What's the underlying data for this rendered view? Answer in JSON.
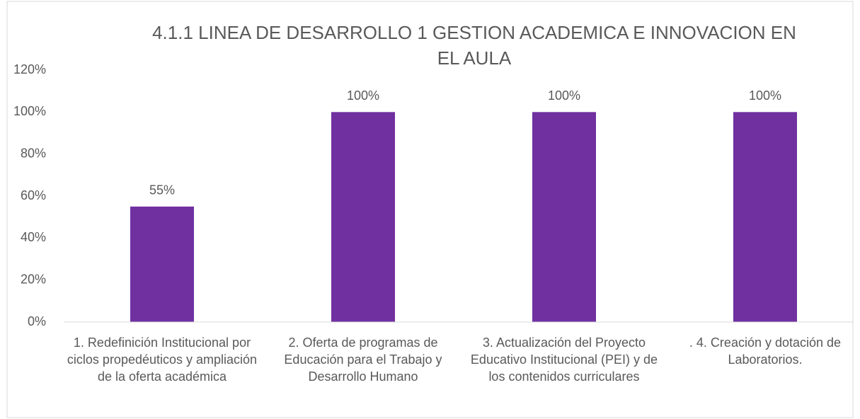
{
  "chart_data": {
    "type": "bar",
    "title": "4.1.1 LINEA DE DESARROLLO 1 GESTION ACADEMICA E INNOVACION EN EL AULA",
    "categories": [
      "1. Redefinición Institucional por ciclos propedéuticos y ampliación de la oferta académica",
      "2. Oferta de programas de Educación para el Trabajo y Desarrollo Humano",
      "3. Actualización del Proyecto Educativo Institucional (PEI) y de los contenidos curriculares",
      ". 4. Creación y dotación de Laboratorios."
    ],
    "values": [
      55,
      100,
      100,
      100
    ],
    "value_labels": [
      "55%",
      "100%",
      "100%",
      "100%"
    ],
    "color": "#7030a0",
    "ylim": [
      0,
      120
    ],
    "yticks": [
      {
        "value": 0,
        "label": "0%"
      },
      {
        "value": 20,
        "label": "20%"
      },
      {
        "value": 40,
        "label": "40%"
      },
      {
        "value": 60,
        "label": "60%"
      },
      {
        "value": 80,
        "label": "80%"
      },
      {
        "value": 100,
        "label": "100%"
      },
      {
        "value": 120,
        "label": "120%"
      }
    ],
    "grid": false
  }
}
